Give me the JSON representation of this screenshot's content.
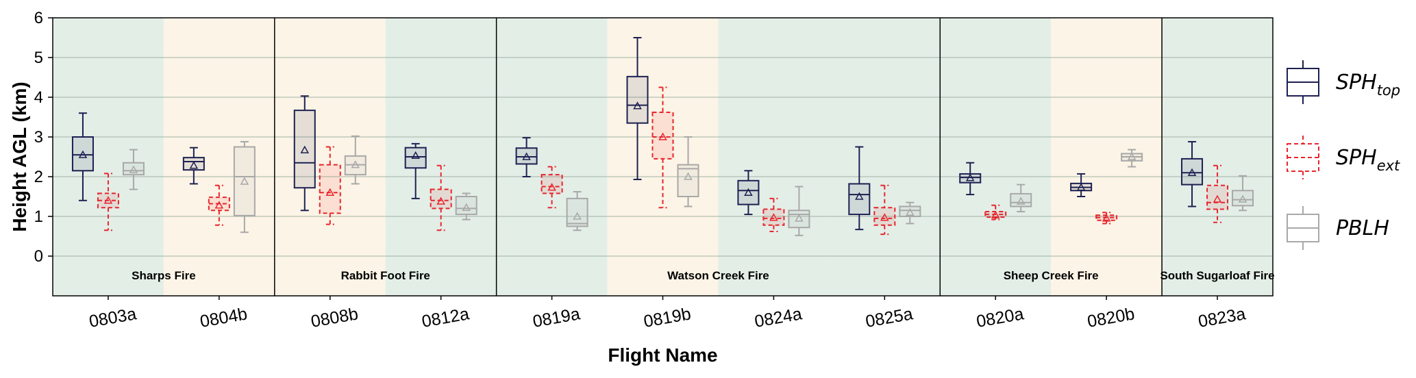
{
  "chart_data": {
    "type": "box",
    "xlabel": "Flight Name",
    "ylabel": "Height AGL (km)",
    "ylim": [
      -1,
      6
    ],
    "yticks": [
      0,
      1,
      2,
      3,
      4,
      5,
      6
    ],
    "grid": "horizontal",
    "legend_position": "right",
    "categories": [
      "0803a",
      "0804b",
      "0808b",
      "0812a",
      "0819a",
      "0819b",
      "0824a",
      "0825a",
      "0820a",
      "0820b",
      "0823a"
    ],
    "category_shading": [
      "green",
      "tan",
      "tan",
      "green",
      "green",
      "tan",
      "green",
      "green",
      "green",
      "tan",
      "green"
    ],
    "fires": [
      {
        "name": "Sharps Fire",
        "categories": [
          "0803a",
          "0804b"
        ]
      },
      {
        "name": "Rabbit Foot Fire",
        "categories": [
          "0808b",
          "0812a"
        ]
      },
      {
        "name": "Watson Creek Fire",
        "categories": [
          "0819a",
          "0819b",
          "0824a",
          "0825a"
        ]
      },
      {
        "name": "Sheep Creek Fire",
        "categories": [
          "0820a",
          "0820b"
        ]
      },
      {
        "name": "South Sugarloaf Fire",
        "categories": [
          "0823a"
        ]
      }
    ],
    "series": [
      {
        "name": "SPHtop",
        "label_main": "SPH",
        "label_sub": "top",
        "color": "#1c2051",
        "fill": "rgba(28,32,81,0.10)",
        "dashed": false,
        "boxes": [
          {
            "min": 1.4,
            "q1": 2.15,
            "median": 2.55,
            "q3": 3.0,
            "max": 3.6,
            "mean": 2.55
          },
          {
            "min": 1.82,
            "q1": 2.17,
            "median": 2.38,
            "q3": 2.48,
            "max": 2.73,
            "mean": 2.28
          },
          {
            "min": 1.15,
            "q1": 1.72,
            "median": 2.35,
            "q3": 3.67,
            "max": 4.03,
            "mean": 2.67
          },
          {
            "min": 1.45,
            "q1": 2.22,
            "median": 2.5,
            "q3": 2.73,
            "max": 2.83,
            "mean": 2.53
          },
          {
            "min": 2.0,
            "q1": 2.32,
            "median": 2.5,
            "q3": 2.72,
            "max": 2.98,
            "mean": 2.5
          },
          {
            "min": 1.93,
            "q1": 3.35,
            "median": 3.8,
            "q3": 4.52,
            "max": 5.5,
            "mean": 3.78
          },
          {
            "min": 1.05,
            "q1": 1.3,
            "median": 1.65,
            "q3": 1.9,
            "max": 2.15,
            "mean": 1.6
          },
          {
            "min": 0.67,
            "q1": 1.05,
            "median": 1.55,
            "q3": 1.82,
            "max": 2.75,
            "mean": 1.5
          },
          {
            "min": 1.55,
            "q1": 1.85,
            "median": 1.98,
            "q3": 2.07,
            "max": 2.35,
            "mean": 1.97
          },
          {
            "min": 1.5,
            "q1": 1.65,
            "median": 1.73,
            "q3": 1.83,
            "max": 2.07,
            "mean": 1.73
          },
          {
            "min": 1.25,
            "q1": 1.8,
            "median": 2.1,
            "q3": 2.45,
            "max": 2.88,
            "mean": 2.1
          }
        ]
      },
      {
        "name": "SPHext",
        "label_main": "SPH",
        "label_sub": "ext",
        "color": "#e8242c",
        "fill": "rgba(232,36,44,0.10)",
        "dashed": true,
        "boxes": [
          {
            "min": 0.65,
            "q1": 1.22,
            "median": 1.4,
            "q3": 1.58,
            "max": 2.08,
            "mean": 1.4
          },
          {
            "min": 0.78,
            "q1": 1.15,
            "median": 1.32,
            "q3": 1.48,
            "max": 1.78,
            "mean": 1.28
          },
          {
            "min": 0.8,
            "q1": 1.08,
            "median": 1.6,
            "q3": 2.3,
            "max": 2.75,
            "mean": 1.6
          },
          {
            "min": 0.65,
            "q1": 1.2,
            "median": 1.4,
            "q3": 1.68,
            "max": 2.28,
            "mean": 1.38
          },
          {
            "min": 1.22,
            "q1": 1.58,
            "median": 1.75,
            "q3": 2.05,
            "max": 2.25,
            "mean": 1.73
          },
          {
            "min": 1.22,
            "q1": 2.45,
            "median": 3.0,
            "q3": 3.62,
            "max": 4.25,
            "mean": 3.0
          },
          {
            "min": 0.62,
            "q1": 0.78,
            "median": 0.95,
            "q3": 1.18,
            "max": 1.45,
            "mean": 0.97
          },
          {
            "min": 0.55,
            "q1": 0.78,
            "median": 0.95,
            "q3": 1.22,
            "max": 1.78,
            "mean": 0.97
          },
          {
            "min": 0.92,
            "q1": 0.98,
            "median": 1.05,
            "q3": 1.12,
            "max": 1.28,
            "mean": 1.03
          },
          {
            "min": 0.82,
            "q1": 0.9,
            "median": 0.97,
            "q3": 1.03,
            "max": 1.1,
            "mean": 0.95
          },
          {
            "min": 0.85,
            "q1": 1.18,
            "median": 1.35,
            "q3": 1.78,
            "max": 2.28,
            "mean": 1.43
          }
        ]
      },
      {
        "name": "PBLH",
        "label_main": "PBLH",
        "label_sub": "",
        "color": "#a8a8a8",
        "fill": "rgba(168,168,168,0.12)",
        "dashed": false,
        "boxes": [
          {
            "min": 1.68,
            "q1": 2.05,
            "median": 2.15,
            "q3": 2.35,
            "max": 2.68,
            "mean": 2.17
          },
          {
            "min": 0.6,
            "q1": 1.02,
            "median": 2.0,
            "q3": 2.75,
            "max": 2.88,
            "mean": 1.88
          },
          {
            "min": 1.82,
            "q1": 2.05,
            "median": 2.3,
            "q3": 2.52,
            "max": 3.02,
            "mean": 2.3
          },
          {
            "min": 0.92,
            "q1": 1.05,
            "median": 1.2,
            "q3": 1.5,
            "max": 1.58,
            "mean": 1.22
          },
          {
            "min": 0.65,
            "q1": 0.75,
            "median": 0.82,
            "q3": 1.45,
            "max": 1.62,
            "mean": 1.0
          },
          {
            "min": 1.25,
            "q1": 1.5,
            "median": 2.2,
            "q3": 2.3,
            "max": 3.0,
            "mean": 2.0
          },
          {
            "min": 0.52,
            "q1": 0.72,
            "median": 1.05,
            "q3": 1.15,
            "max": 1.75,
            "mean": 0.95
          },
          {
            "min": 0.82,
            "q1": 1.0,
            "median": 1.15,
            "q3": 1.25,
            "max": 1.35,
            "mean": 1.1
          },
          {
            "min": 1.12,
            "q1": 1.25,
            "median": 1.35,
            "q3": 1.57,
            "max": 1.8,
            "mean": 1.38
          },
          {
            "min": 2.25,
            "q1": 2.4,
            "median": 2.5,
            "q3": 2.58,
            "max": 2.68,
            "mean": 2.5
          },
          {
            "min": 1.15,
            "q1": 1.27,
            "median": 1.42,
            "q3": 1.65,
            "max": 2.02,
            "mean": 1.43
          }
        ]
      }
    ],
    "colors": {
      "green_band": "#e3eee7",
      "tan_band": "#fcf4e6",
      "grid": "#9fb3a4",
      "axis": "#000000"
    }
  }
}
